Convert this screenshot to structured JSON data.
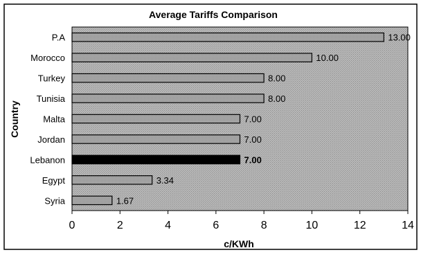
{
  "chart_data": {
    "type": "bar",
    "orientation": "horizontal",
    "title": "Average Tariffs Comparison",
    "xlabel": "c/KWh",
    "ylabel": "Country",
    "categories": [
      "P.A",
      "Morocco",
      "Turkey",
      "Tunisia",
      "Malta",
      "Jordan",
      "Lebanon",
      "Egypt",
      "Syria"
    ],
    "values": [
      13.0,
      10.0,
      8.0,
      8.0,
      7.0,
      7.0,
      7.0,
      3.34,
      1.67
    ],
    "data_labels": [
      "13.00",
      "10.00",
      "8.00",
      "8.00",
      "7.00",
      "7.00",
      "7.00",
      "3.34",
      "1.67"
    ],
    "highlight_category": "Lebanon",
    "xlim": [
      0,
      14
    ],
    "xticks": [
      0,
      2,
      4,
      6,
      8,
      10,
      12,
      14
    ],
    "grid": false,
    "legend": "none",
    "colors": {
      "bar": "#a8a8a8",
      "bar_highlight": "#000000",
      "plot_background": "#b4b4b4",
      "border": "#000000"
    }
  }
}
